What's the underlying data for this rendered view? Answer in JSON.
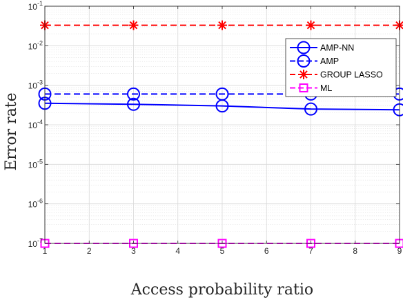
{
  "chart_data": {
    "type": "line",
    "xlabel": "Access probability ratio",
    "ylabel": "Error rate",
    "y_scale": "log",
    "xlim": [
      1,
      9
    ],
    "ylim": [
      1e-07,
      0.1
    ],
    "x_ticks": [
      1,
      2,
      3,
      4,
      5,
      6,
      7,
      8,
      9
    ],
    "x_tick_labels": [
      "1",
      "2",
      "3",
      "4",
      "5",
      "6",
      "7",
      "8",
      "9"
    ],
    "y_ticks": [
      1e-07,
      1e-06,
      1e-05,
      0.0001,
      0.001,
      0.01,
      0.1
    ],
    "y_tick_labels": [
      {
        "base": "10",
        "exp": "-7"
      },
      {
        "base": "10",
        "exp": "-6"
      },
      {
        "base": "10",
        "exp": "-5"
      },
      {
        "base": "10",
        "exp": "-4"
      },
      {
        "base": "10",
        "exp": "-3"
      },
      {
        "base": "10",
        "exp": "-2"
      },
      {
        "base": "10",
        "exp": "-1"
      }
    ],
    "grid": true,
    "minor_grid": true,
    "legend_position": "top-right",
    "x": [
      1,
      3,
      5,
      7,
      9
    ],
    "series": [
      {
        "name": "AMP-NN",
        "values": [
          0.00035,
          0.00033,
          0.0003,
          0.00025,
          0.00024
        ],
        "color": "#0000ff",
        "dash": "solid",
        "marker": "circle"
      },
      {
        "name": "AMP",
        "values": [
          0.0006,
          0.0006,
          0.0006,
          0.0006,
          0.0006
        ],
        "color": "#0000ff",
        "dash": "dashed",
        "marker": "circle"
      },
      {
        "name": "GROUP LASSO",
        "values": [
          0.033,
          0.033,
          0.033,
          0.033,
          0.033
        ],
        "color": "#ff0000",
        "dash": "dashed",
        "marker": "asterisk"
      },
      {
        "name": "ML",
        "values": [
          1e-07,
          1e-07,
          1e-07,
          1e-07,
          1e-07
        ],
        "color": "#ff00ff",
        "dash": "dashed",
        "marker": "square"
      }
    ]
  }
}
